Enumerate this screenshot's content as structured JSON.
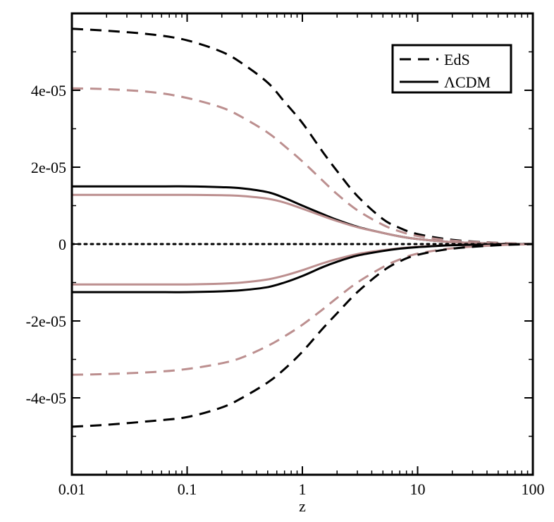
{
  "chart_data": {
    "type": "line",
    "title": "",
    "xlabel": "z",
    "ylabel": "",
    "x_scale": "log",
    "xlim": [
      0.01,
      100
    ],
    "ylim": [
      -6e-05,
      6e-05
    ],
    "x_ticks": [
      0.01,
      0.1,
      1,
      10,
      100
    ],
    "x_tick_labels": [
      "0.01",
      "0.1",
      "1",
      "10",
      "100"
    ],
    "y_ticks": [
      -4e-05,
      -2e-05,
      0,
      2e-05,
      4e-05
    ],
    "y_tick_labels": [
      "-4e-05",
      "-2e-05",
      "0",
      "2e-05",
      "4e-05"
    ],
    "grid": false,
    "legend_position": "top-right",
    "legend": [
      {
        "label": "EdS",
        "style": "dashed",
        "color": "#000000"
      },
      {
        "label": "ΛCDM",
        "style": "solid",
        "color": "#000000"
      }
    ],
    "x": [
      0.01,
      0.02,
      0.05,
      0.1,
      0.2,
      0.3,
      0.5,
      0.7,
      1,
      1.5,
      2,
      3,
      5,
      7,
      10,
      20,
      50,
      100
    ],
    "series": [
      {
        "style": "dashed",
        "color": "#000000",
        "values": [
          5.6e-05,
          5.55e-05,
          5.45e-05,
          5.3e-05,
          5e-05,
          4.7e-05,
          4.2e-05,
          3.7e-05,
          3.15e-05,
          2.4e-05,
          1.9e-05,
          1.25e-05,
          6.5e-06,
          4.2e-06,
          2.6e-06,
          1.1e-06,
          3e-07,
          0
        ]
      },
      {
        "style": "dashed",
        "color": "#bc8f8f",
        "values": [
          4.05e-05,
          4.03e-05,
          3.95e-05,
          3.8e-05,
          3.55e-05,
          3.3e-05,
          2.9e-05,
          2.55e-05,
          2.15e-05,
          1.65e-05,
          1.3e-05,
          8.8e-06,
          5e-06,
          3.3e-06,
          2.1e-06,
          9e-07,
          3e-07,
          0
        ]
      },
      {
        "style": "solid",
        "color": "#000000",
        "values": [
          1.5e-05,
          1.5e-05,
          1.5e-05,
          1.5e-05,
          1.48e-05,
          1.45e-05,
          1.35e-05,
          1.2e-05,
          1e-05,
          7.8e-06,
          6.3e-06,
          4.5e-06,
          2.9e-06,
          2e-06,
          1.3e-06,
          5e-07,
          1e-07,
          0
        ]
      },
      {
        "style": "solid",
        "color": "#bc8f8f",
        "values": [
          1.28e-05,
          1.28e-05,
          1.28e-05,
          1.28e-05,
          1.27e-05,
          1.25e-05,
          1.18e-05,
          1.08e-05,
          9.2e-06,
          7.3e-06,
          6e-06,
          4.4e-06,
          2.9e-06,
          2e-06,
          1.3e-06,
          5e-07,
          1e-07,
          0
        ]
      },
      {
        "style": "dotted",
        "color": "#000000",
        "values": [
          0,
          0,
          0,
          0,
          0,
          0,
          0,
          0,
          0,
          0,
          0,
          0,
          0,
          0,
          0,
          0,
          0,
          0
        ]
      },
      {
        "style": "solid",
        "color": "#bc8f8f",
        "values": [
          -1.05e-05,
          -1.05e-05,
          -1.05e-05,
          -1.05e-05,
          -1.03e-05,
          -1e-05,
          -9.2e-06,
          -8.2e-06,
          -6.8e-06,
          -5e-06,
          -3.9e-06,
          -2.6e-06,
          -1.6e-06,
          -1.1e-06,
          -7e-07,
          -3e-07,
          -1e-07,
          0
        ]
      },
      {
        "style": "solid",
        "color": "#000000",
        "values": [
          -1.25e-05,
          -1.25e-05,
          -1.25e-05,
          -1.25e-05,
          -1.23e-05,
          -1.2e-05,
          -1.12e-05,
          -1e-05,
          -8.3e-06,
          -6e-06,
          -4.6e-06,
          -3e-06,
          -1.8e-06,
          -1.2e-06,
          -8e-07,
          -3e-07,
          -1e-07,
          0
        ]
      },
      {
        "style": "dashed",
        "color": "#bc8f8f",
        "values": [
          -3.4e-05,
          -3.38e-05,
          -3.33e-05,
          -3.25e-05,
          -3.1e-05,
          -2.95e-05,
          -2.65e-05,
          -2.4e-05,
          -2.1e-05,
          -1.7e-05,
          -1.4e-05,
          -1e-05,
          -6e-06,
          -4e-06,
          -2.5e-06,
          -1.1e-06,
          -3e-07,
          0
        ]
      },
      {
        "style": "dashed",
        "color": "#000000",
        "values": [
          -4.75e-05,
          -4.7e-05,
          -4.6e-05,
          -4.5e-05,
          -4.25e-05,
          -4e-05,
          -3.6e-05,
          -3.25e-05,
          -2.8e-05,
          -2.2e-05,
          -1.8e-05,
          -1.25e-05,
          -7e-06,
          -4.5e-06,
          -2.8e-06,
          -1.2e-06,
          -3e-07,
          0
        ]
      }
    ]
  }
}
